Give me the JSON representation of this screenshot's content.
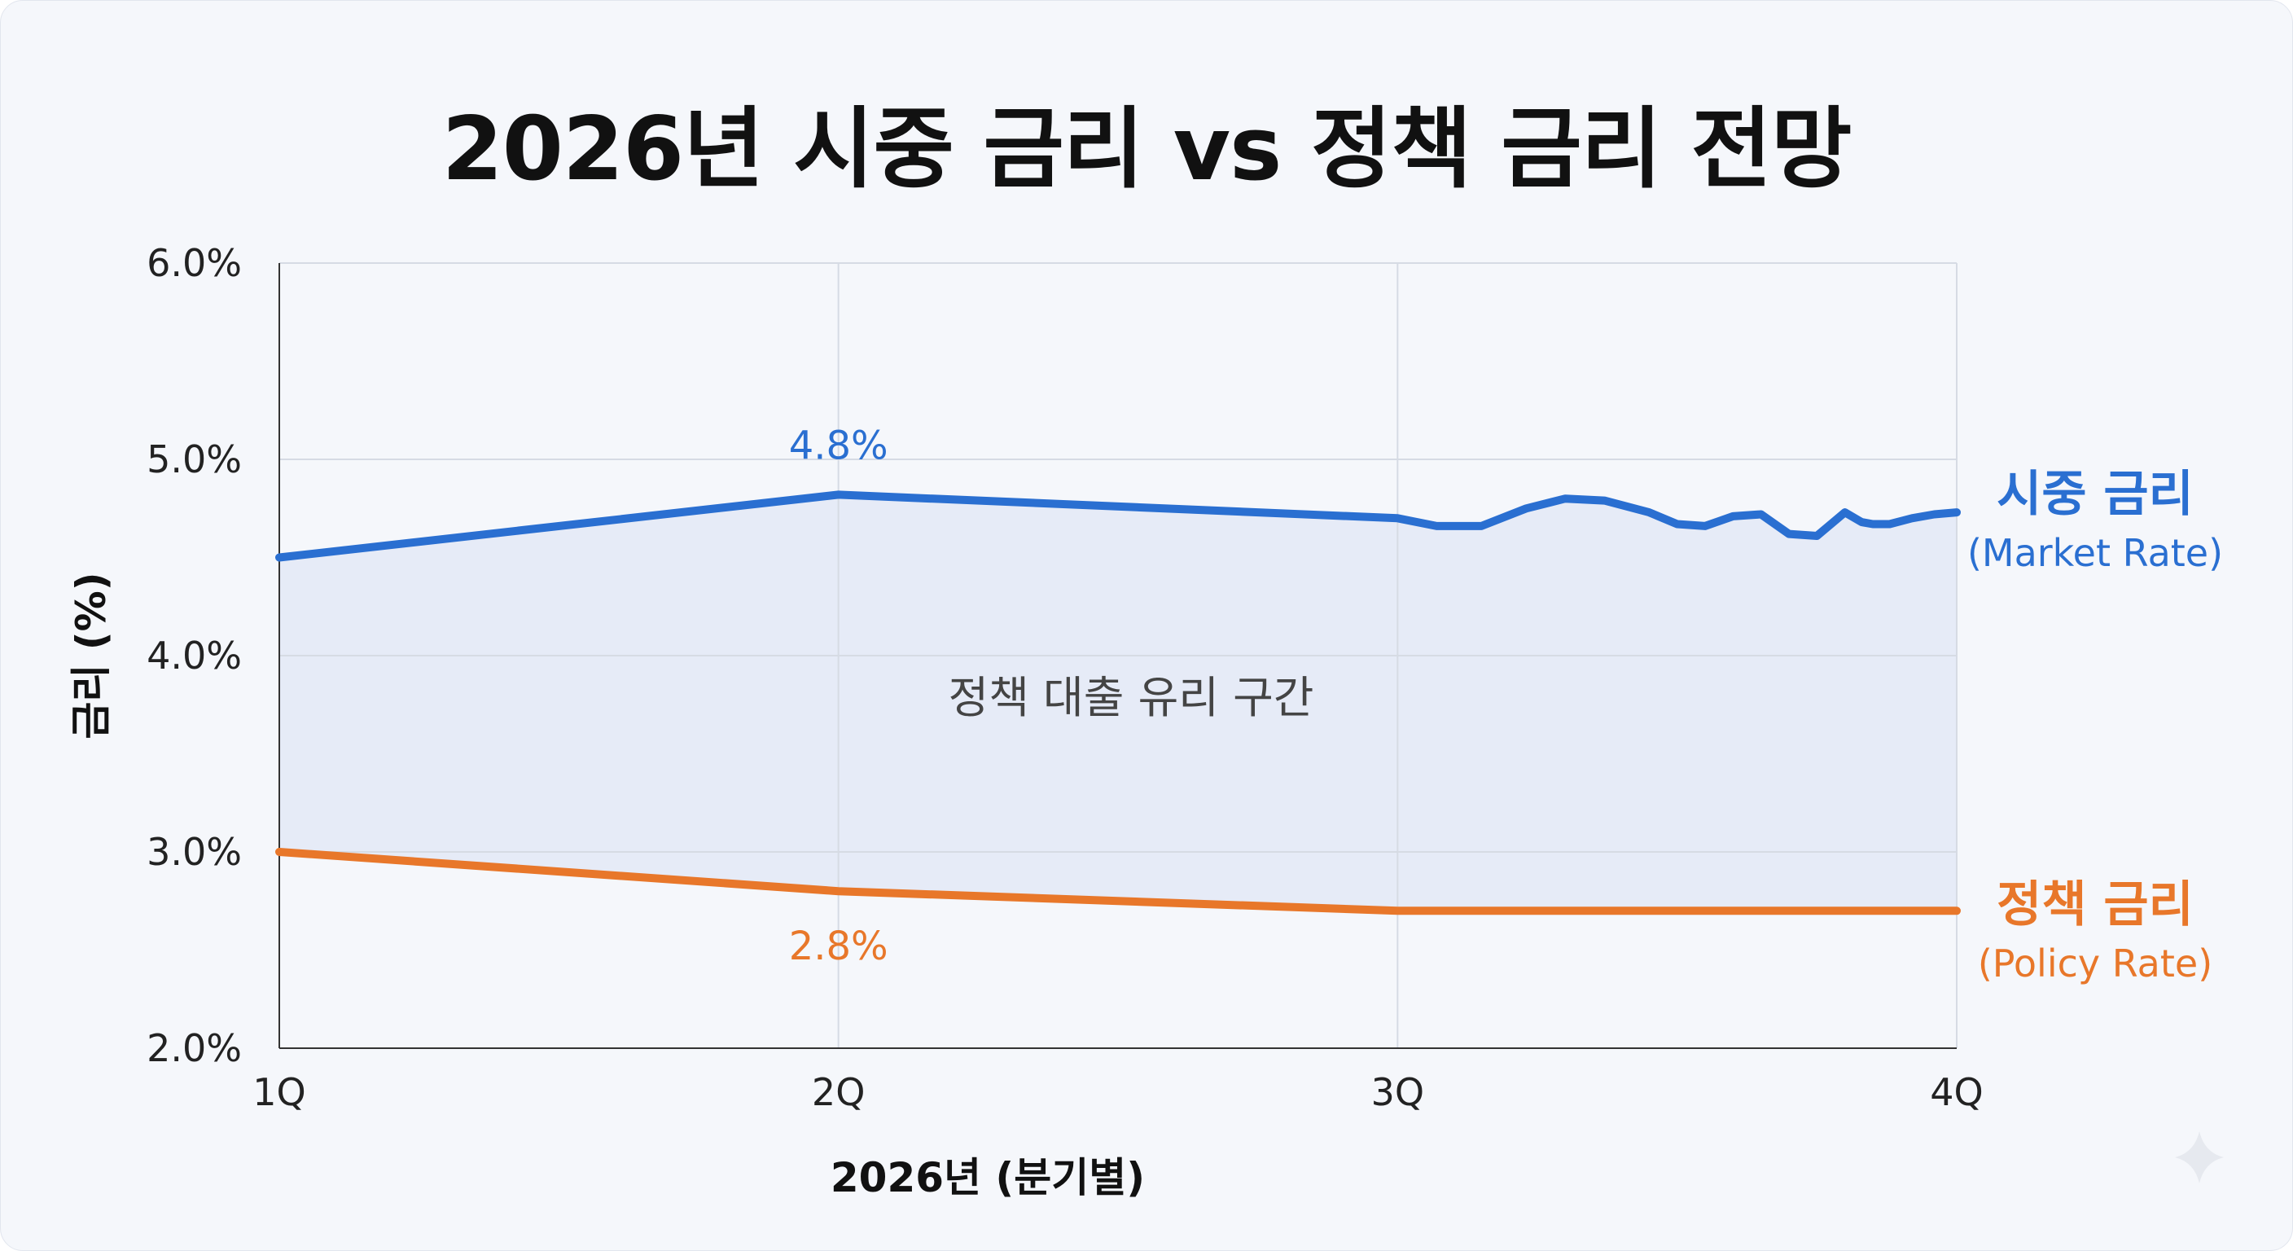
{
  "title": "2026년 시중 금리 vs 정책 금리 전망",
  "chart_data": {
    "type": "line",
    "title": "2026년 시중 금리 vs 정책 금리 전망",
    "xlabel": "2026년 (분기별)",
    "ylabel": "금리 (%)",
    "categories": [
      "1Q",
      "2Q",
      "3Q",
      "4Q"
    ],
    "x_values": [
      1,
      2,
      3,
      4
    ],
    "ylim": [
      2.0,
      6.0
    ],
    "yticks": [
      2.0,
      3.0,
      4.0,
      5.0,
      6.0
    ],
    "ytick_labels": [
      "2.0%",
      "3.0%",
      "4.0%",
      "5.0%",
      "6.0%"
    ],
    "grid": true,
    "shaded_region": {
      "label": "정책 대출 유리 구간",
      "between": [
        "시중 금리",
        "정책 금리"
      ]
    },
    "series": [
      {
        "name": "시중 금리",
        "name_en": "(Market Rate)",
        "color": "#2a6fd1",
        "x": [
          1.0,
          2.0,
          3.0,
          3.07,
          3.15,
          3.23,
          3.3,
          3.37,
          3.45,
          3.5,
          3.55,
          3.6,
          3.65,
          3.7,
          3.75,
          3.8,
          3.83,
          3.85,
          3.88,
          3.92,
          3.96,
          4.0
        ],
        "values": [
          4.5,
          4.82,
          4.7,
          4.66,
          4.66,
          4.75,
          4.8,
          4.79,
          4.73,
          4.67,
          4.66,
          4.71,
          4.72,
          4.62,
          4.61,
          4.73,
          4.68,
          4.67,
          4.67,
          4.7,
          4.72,
          4.73
        ],
        "annotation": {
          "x": 2,
          "label": "4.8%"
        }
      },
      {
        "name": "정책 금리",
        "name_en": "(Policy Rate)",
        "color": "#e8772a",
        "x": [
          1,
          2,
          3,
          4
        ],
        "values": [
          3.0,
          2.8,
          2.7,
          2.7
        ],
        "annotation": {
          "x": 2,
          "label": "2.8%"
        }
      }
    ]
  }
}
